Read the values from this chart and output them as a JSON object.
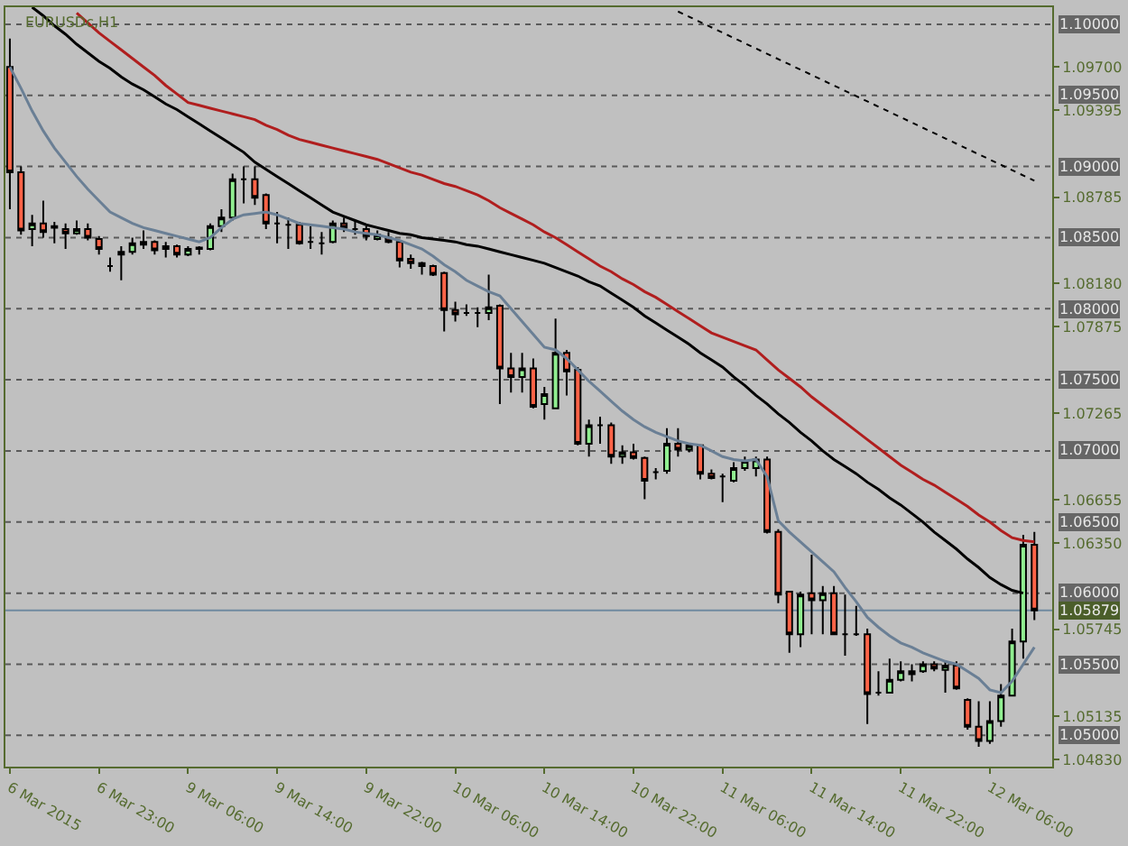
{
  "chart_data": {
    "type": "candlestick",
    "title": "EURUSDc,H1",
    "categories": [
      "6 Mar 2015",
      null,
      null,
      null,
      null,
      null,
      null,
      null,
      "6 Mar 23:00",
      null,
      null,
      null,
      null,
      null,
      null,
      null,
      "9 Mar 06:00",
      null,
      null,
      null,
      null,
      null,
      null,
      null,
      "9 Mar 14:00",
      null,
      null,
      null,
      null,
      null,
      null,
      null,
      "9 Mar 22:00",
      null,
      null,
      null,
      null,
      null,
      null,
      null,
      "10 Mar 06:00",
      null,
      null,
      null,
      null,
      null,
      null,
      null,
      "10 Mar 14:00",
      null,
      null,
      null,
      null,
      null,
      null,
      null,
      "10 Mar 22:00",
      null,
      null,
      null,
      null,
      null,
      null,
      null,
      "11 Mar 06:00",
      null,
      null,
      null,
      null,
      null,
      null,
      null,
      "11 Mar 14:00",
      null,
      null,
      null,
      null,
      null,
      null,
      null,
      "11 Mar 22:00",
      null,
      null,
      null,
      null,
      null,
      null,
      null,
      "12 Mar 06:00",
      null,
      null,
      null,
      null
    ],
    "ohlc": [
      [
        1.097,
        1.099,
        1.087,
        1.0896
      ],
      [
        1.0896,
        1.09,
        1.0852,
        1.0855
      ],
      [
        1.0856,
        1.0866,
        1.0844,
        1.086
      ],
      [
        1.086,
        1.0876,
        1.085,
        1.0854
      ],
      [
        1.0858,
        1.0861,
        1.0846,
        1.0857
      ],
      [
        1.0856,
        1.086,
        1.0842,
        1.0853
      ],
      [
        1.0853,
        1.0862,
        1.0852,
        1.0856
      ],
      [
        1.0856,
        1.086,
        1.0848,
        1.085
      ],
      [
        1.0849,
        1.0851,
        1.0838,
        1.0842
      ],
      [
        1.083,
        1.0836,
        1.0826,
        1.083
      ],
      [
        1.0838,
        1.0844,
        1.082,
        1.084
      ],
      [
        1.084,
        1.085,
        1.0838,
        1.0846
      ],
      [
        1.0845,
        1.0855,
        1.0842,
        1.0847
      ],
      [
        1.0847,
        1.0848,
        1.0838,
        1.0841
      ],
      [
        1.0842,
        1.0847,
        1.0836,
        1.0844
      ],
      [
        1.0844,
        1.0845,
        1.0836,
        1.0838
      ],
      [
        1.0838,
        1.0844,
        1.0837,
        1.0842
      ],
      [
        1.0842,
        1.0844,
        1.0838,
        1.0843
      ],
      [
        1.0842,
        1.086,
        1.0841,
        1.0858
      ],
      [
        1.0858,
        1.087,
        1.0854,
        1.0864
      ],
      [
        1.0864,
        1.0895,
        1.0862,
        1.0891
      ],
      [
        1.0891,
        1.09,
        1.0874,
        1.0891
      ],
      [
        1.0891,
        1.09,
        1.0873,
        1.0878
      ],
      [
        1.088,
        1.0881,
        1.0856,
        1.086
      ],
      [
        1.086,
        1.0868,
        1.0846,
        1.086
      ],
      [
        1.0859,
        1.0864,
        1.0842,
        1.0859
      ],
      [
        1.0859,
        1.0861,
        1.0845,
        1.0846
      ],
      [
        1.0847,
        1.0858,
        1.0842,
        1.0847
      ],
      [
        1.0846,
        1.0854,
        1.0838,
        1.0846
      ],
      [
        1.0847,
        1.0862,
        1.0846,
        1.086
      ],
      [
        1.086,
        1.0864,
        1.0854,
        1.0857
      ],
      [
        1.0856,
        1.0862,
        1.0852,
        1.0856
      ],
      [
        1.0856,
        1.0858,
        1.0848,
        1.0851
      ],
      [
        1.0849,
        1.0855,
        1.0848,
        1.0852
      ],
      [
        1.085,
        1.0854,
        1.0846,
        1.0847
      ],
      [
        1.0847,
        1.0848,
        1.0829,
        1.0834
      ],
      [
        1.0835,
        1.0838,
        1.0828,
        1.0832
      ],
      [
        1.0832,
        1.0833,
        1.0824,
        1.083
      ],
      [
        1.083,
        1.0831,
        1.0823,
        1.0824
      ],
      [
        1.0825,
        1.0826,
        1.0784,
        1.0799
      ],
      [
        1.0799,
        1.0805,
        1.0791,
        1.0796
      ],
      [
        1.0797,
        1.0803,
        1.0795,
        1.0797
      ],
      [
        1.0797,
        1.0801,
        1.0787,
        1.0797
      ],
      [
        1.0797,
        1.0824,
        1.0792,
        1.0801
      ],
      [
        1.0802,
        1.0803,
        1.0733,
        1.0758
      ],
      [
        1.0758,
        1.0769,
        1.0741,
        1.0752
      ],
      [
        1.0752,
        1.0769,
        1.0741,
        1.0758
      ],
      [
        1.0758,
        1.0765,
        1.073,
        1.0731
      ],
      [
        1.0733,
        1.0745,
        1.0722,
        1.074
      ],
      [
        1.073,
        1.0793,
        1.073,
        1.0769
      ],
      [
        1.0769,
        1.0771,
        1.0739,
        1.0756
      ],
      [
        1.0757,
        1.0759,
        1.0704,
        1.0705
      ],
      [
        1.0705,
        1.0722,
        1.0696,
        1.0718
      ],
      [
        1.0718,
        1.0724,
        1.0705,
        1.0718
      ],
      [
        1.0718,
        1.072,
        1.0691,
        1.0696
      ],
      [
        1.0696,
        1.0704,
        1.0691,
        1.0699
      ],
      [
        1.0699,
        1.0705,
        1.0694,
        1.0695
      ],
      [
        1.0695,
        1.0696,
        1.0666,
        1.0679
      ],
      [
        1.0685,
        1.0688,
        1.068,
        1.0685
      ],
      [
        1.0686,
        1.0716,
        1.0684,
        1.0705
      ],
      [
        1.0705,
        1.0716,
        1.0696,
        1.0701
      ],
      [
        1.0701,
        1.0705,
        1.0699,
        1.0704
      ],
      [
        1.0704,
        1.0704,
        1.068,
        1.0684
      ],
      [
        1.0684,
        1.0687,
        1.068,
        1.0681
      ],
      [
        1.0682,
        1.0684,
        1.0664,
        1.0682
      ],
      [
        1.0679,
        1.0692,
        1.0678,
        1.0688
      ],
      [
        1.0688,
        1.0696,
        1.0686,
        1.0693
      ],
      [
        1.0688,
        1.0696,
        1.0682,
        1.0694
      ],
      [
        1.0694,
        1.0696,
        1.0642,
        1.0643
      ],
      [
        1.0643,
        1.0645,
        1.0593,
        1.0599
      ],
      [
        1.0601,
        1.0601,
        1.0558,
        1.0571
      ],
      [
        1.0571,
        1.0601,
        1.0562,
        1.0599
      ],
      [
        1.06,
        1.0627,
        1.0571,
        1.0595
      ],
      [
        1.0595,
        1.0605,
        1.0571,
        1.06
      ],
      [
        1.06,
        1.0605,
        1.0571,
        1.0571
      ],
      [
        1.0571,
        1.0599,
        1.0556,
        1.0571
      ],
      [
        1.0571,
        1.0591,
        1.057,
        1.0571
      ],
      [
        1.0571,
        1.0575,
        1.0508,
        1.0529
      ],
      [
        1.053,
        1.0545,
        1.0528,
        1.053
      ],
      [
        1.053,
        1.0554,
        1.053,
        1.0539
      ],
      [
        1.0539,
        1.0552,
        1.0538,
        1.0545
      ],
      [
        1.0545,
        1.055,
        1.0538,
        1.0543
      ],
      [
        1.0545,
        1.0552,
        1.0544,
        1.055
      ],
      [
        1.055,
        1.0552,
        1.0545,
        1.0547
      ],
      [
        1.0546,
        1.0552,
        1.053,
        1.0549
      ],
      [
        1.0549,
        1.0552,
        1.0532,
        1.0533
      ],
      [
        1.0525,
        1.0526,
        1.0504,
        1.0506
      ],
      [
        1.0506,
        1.0524,
        1.0492,
        1.0496
      ],
      [
        1.0496,
        1.0524,
        1.0494,
        1.051
      ],
      [
        1.051,
        1.0536,
        1.0506,
        1.0528
      ],
      [
        1.0528,
        1.0575,
        1.0528,
        1.0566
      ],
      [
        1.0566,
        1.0641,
        1.0554,
        1.0634
      ],
      [
        1.0634,
        1.0643,
        1.0581,
        1.05879
      ]
    ],
    "series": [
      {
        "type": "line",
        "color": "#b01e1e",
        "values": [
          null,
          null,
          null,
          null,
          null,
          null,
          1.1008,
          1.1001,
          1.0994,
          1.0988,
          1.0982,
          1.0976,
          1.097,
          1.0964,
          1.0957,
          1.0951,
          1.0945,
          1.0943,
          1.0941,
          1.0939,
          1.0937,
          1.0935,
          1.0933,
          1.0929,
          1.0926,
          1.0922,
          1.0919,
          1.0917,
          1.0915,
          1.0913,
          1.0911,
          1.0909,
          1.0907,
          1.0905,
          1.0902,
          1.0899,
          1.0896,
          1.0894,
          1.0891,
          1.0888,
          1.0886,
          1.0883,
          1.088,
          1.0876,
          1.0871,
          1.0867,
          1.0863,
          1.0859,
          1.0854,
          1.085,
          1.0845,
          1.084,
          1.0835,
          1.083,
          1.0826,
          1.0821,
          1.0817,
          1.0812,
          1.0808,
          1.0803,
          1.0798,
          1.0793,
          1.0788,
          1.0783,
          1.078,
          1.0777,
          1.0774,
          1.0771,
          1.0764,
          1.0757,
          1.0751,
          1.0745,
          1.0738,
          1.0732,
          1.0726,
          1.072,
          1.0714,
          1.0708,
          1.0702,
          1.0696,
          1.069,
          1.0685,
          1.068,
          1.0676,
          1.0671,
          1.0666,
          1.0661,
          1.0655,
          1.065,
          1.0644,
          1.0639,
          1.0637,
          1.0636
        ]
      },
      {
        "type": "line",
        "color": "#000000",
        "values": [
          null,
          null,
          1.1012,
          1.1006,
          1.0999,
          1.0993,
          1.0986,
          1.098,
          1.0974,
          1.0969,
          1.0963,
          1.0958,
          1.0954,
          1.0949,
          1.0944,
          1.094,
          1.0935,
          1.093,
          1.0925,
          1.092,
          1.0915,
          1.091,
          1.0903,
          1.0898,
          1.0893,
          1.0888,
          1.0883,
          1.0878,
          1.0873,
          1.0868,
          1.0865,
          1.0862,
          1.0859,
          1.0857,
          1.0855,
          1.0853,
          1.0852,
          1.085,
          1.0849,
          1.0848,
          1.0847,
          1.0845,
          1.0844,
          1.0842,
          1.084,
          1.0838,
          1.0836,
          1.0834,
          1.0832,
          1.0829,
          1.0826,
          1.0823,
          1.0819,
          1.0816,
          1.0811,
          1.0806,
          1.0801,
          1.0795,
          1.079,
          1.0785,
          1.078,
          1.0775,
          1.0769,
          1.0764,
          1.0759,
          1.0752,
          1.0746,
          1.0739,
          1.0733,
          1.0726,
          1.072,
          1.0713,
          1.0707,
          1.07,
          1.0694,
          1.0689,
          1.0684,
          1.0678,
          1.0673,
          1.0667,
          1.0662,
          1.0656,
          1.065,
          1.0643,
          1.0637,
          1.0631,
          1.0624,
          1.0618,
          1.0611,
          1.0606,
          1.0602,
          1.06,
          null
        ]
      },
      {
        "type": "line",
        "color": "#6a7f95",
        "values": [
          1.097,
          1.0955,
          1.0939,
          1.0925,
          1.0913,
          1.0903,
          1.0893,
          1.0884,
          1.0876,
          1.0868,
          1.0864,
          1.086,
          1.0857,
          1.0855,
          1.0853,
          1.0851,
          1.0849,
          1.0847,
          1.085,
          1.0857,
          1.0863,
          1.0866,
          1.0867,
          1.0868,
          1.0866,
          1.0863,
          1.086,
          1.0859,
          1.0858,
          1.0857,
          1.0856,
          1.0854,
          1.0853,
          1.0852,
          1.085,
          1.0848,
          1.0845,
          1.0842,
          1.0837,
          1.0831,
          1.0826,
          1.082,
          1.0816,
          1.0812,
          1.0809,
          1.08,
          1.0791,
          1.0782,
          1.0773,
          1.0771,
          1.0765,
          1.0757,
          1.0749,
          1.0742,
          1.0735,
          1.0728,
          1.0722,
          1.0717,
          1.0713,
          1.071,
          1.0707,
          1.0705,
          1.0704,
          1.07,
          1.0696,
          1.0694,
          1.0693,
          1.0694,
          1.0682,
          1.0651,
          1.0643,
          1.0636,
          1.0629,
          1.0622,
          1.0615,
          1.0604,
          1.0594,
          1.0583,
          1.0576,
          1.057,
          1.0565,
          1.0562,
          1.0558,
          1.0555,
          1.0552,
          1.055,
          1.0545,
          1.054,
          1.0532,
          1.053,
          1.0538,
          1.055,
          1.0562
        ]
      },
      {
        "type": "line",
        "color": "#000000",
        "line_style": "dotted",
        "values": [
          null,
          null,
          null,
          null,
          null,
          null,
          null,
          null,
          null,
          null,
          null,
          null,
          null,
          null,
          null,
          null,
          null,
          null,
          null,
          null,
          null,
          null,
          null,
          null,
          null,
          null,
          null,
          null,
          null,
          null,
          null,
          null,
          null,
          null,
          null,
          null,
          null,
          null,
          null,
          null,
          null,
          null,
          null,
          null,
          null,
          null,
          null,
          null,
          null,
          null,
          null,
          null,
          null,
          null,
          null,
          null,
          null,
          null,
          null,
          null,
          1.1009,
          null,
          null,
          null,
          null,
          null,
          null,
          null,
          null,
          null,
          null,
          null,
          null,
          null,
          null,
          null,
          null,
          null,
          null,
          null,
          null,
          null,
          null,
          null,
          null,
          null,
          null,
          null,
          null,
          null,
          null,
          null,
          1.089
        ]
      }
    ],
    "ylim": [
      1.0478,
      1.1012
    ],
    "yticks": [
      {
        "value": 1.097,
        "label": "1.09700"
      },
      {
        "value": 1.09395,
        "label": "1.09395"
      },
      {
        "value": 1.08785,
        "label": "1.08785"
      },
      {
        "value": 1.0818,
        "label": "1.08180"
      },
      {
        "value": 1.07875,
        "label": "1.07875"
      },
      {
        "value": 1.07265,
        "label": "1.07265"
      },
      {
        "value": 1.06655,
        "label": "1.06655"
      },
      {
        "value": 1.0635,
        "label": "1.06350"
      },
      {
        "value": 1.05745,
        "label": "1.05745"
      },
      {
        "value": 1.05135,
        "label": "1.05135"
      },
      {
        "value": 1.0483,
        "label": "1.04830"
      }
    ],
    "ref_lines": [
      {
        "axis": "y",
        "value": 1.1,
        "label": "1.10000",
        "color": "#5a5a5a",
        "line_style": "dashed"
      },
      {
        "axis": "y",
        "value": 1.095,
        "label": "1.09500",
        "color": "#5a5a5a",
        "line_style": "dashed"
      },
      {
        "axis": "y",
        "value": 1.09,
        "label": "1.09000",
        "color": "#5a5a5a",
        "line_style": "dashed"
      },
      {
        "axis": "y",
        "value": 1.085,
        "label": "1.08500",
        "color": "#5a5a5a",
        "line_style": "dashed"
      },
      {
        "axis": "y",
        "value": 1.08,
        "label": "1.08000",
        "color": "#5a5a5a",
        "line_style": "dashed"
      },
      {
        "axis": "y",
        "value": 1.075,
        "label": "1.07500",
        "color": "#5a5a5a",
        "line_style": "dashed"
      },
      {
        "axis": "y",
        "value": 1.07,
        "label": "1.07000",
        "color": "#5a5a5a",
        "line_style": "dashed"
      },
      {
        "axis": "y",
        "value": 1.065,
        "label": "1.06500",
        "color": "#5a5a5a",
        "line_style": "dashed"
      },
      {
        "axis": "y",
        "value": 1.06,
        "label": "1.06000",
        "color": "#5a5a5a",
        "line_style": "dashed"
      },
      {
        "axis": "y",
        "value": 1.055,
        "label": "1.05500",
        "color": "#5a5a5a",
        "line_style": "dashed"
      },
      {
        "axis": "y",
        "value": 1.05,
        "label": "1.05000",
        "color": "#5a5a5a",
        "line_style": "dashed"
      },
      {
        "axis": "y",
        "value": 1.05879,
        "label": "1.05879",
        "color": "#6f8aa0",
        "line_style": "solid"
      }
    ],
    "grid": false
  }
}
